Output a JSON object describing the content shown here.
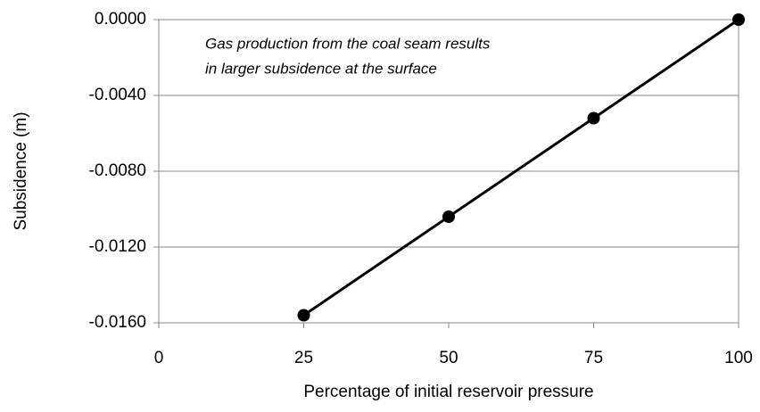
{
  "chart_data": {
    "type": "line",
    "annotation": [
      "Gas production from the coal seam results",
      "in larger subsidence at the surface"
    ],
    "x_label": "Percentage of initial reservoir pressure",
    "y_label": "Subsidence (m)",
    "x": [
      25,
      50,
      75,
      100
    ],
    "series": [
      {
        "color": "#000000",
        "values": [
          -0.0156,
          -0.0104,
          -0.0052,
          0
        ]
      }
    ],
    "xlim": [
      0,
      100
    ],
    "xticks": [
      0,
      25,
      50,
      75,
      100
    ],
    "ylim": [
      -0.016,
      0
    ],
    "yticks": [
      {
        "value": -0.016,
        "label": "-0.0160"
      },
      {
        "value": -0.012,
        "label": "-0.0120"
      },
      {
        "value": -0.008,
        "label": "-0.0080"
      },
      {
        "value": -0.004,
        "label": "-0.0040"
      },
      {
        "value": 0,
        "label": "0.0000"
      }
    ],
    "grid": true
  }
}
